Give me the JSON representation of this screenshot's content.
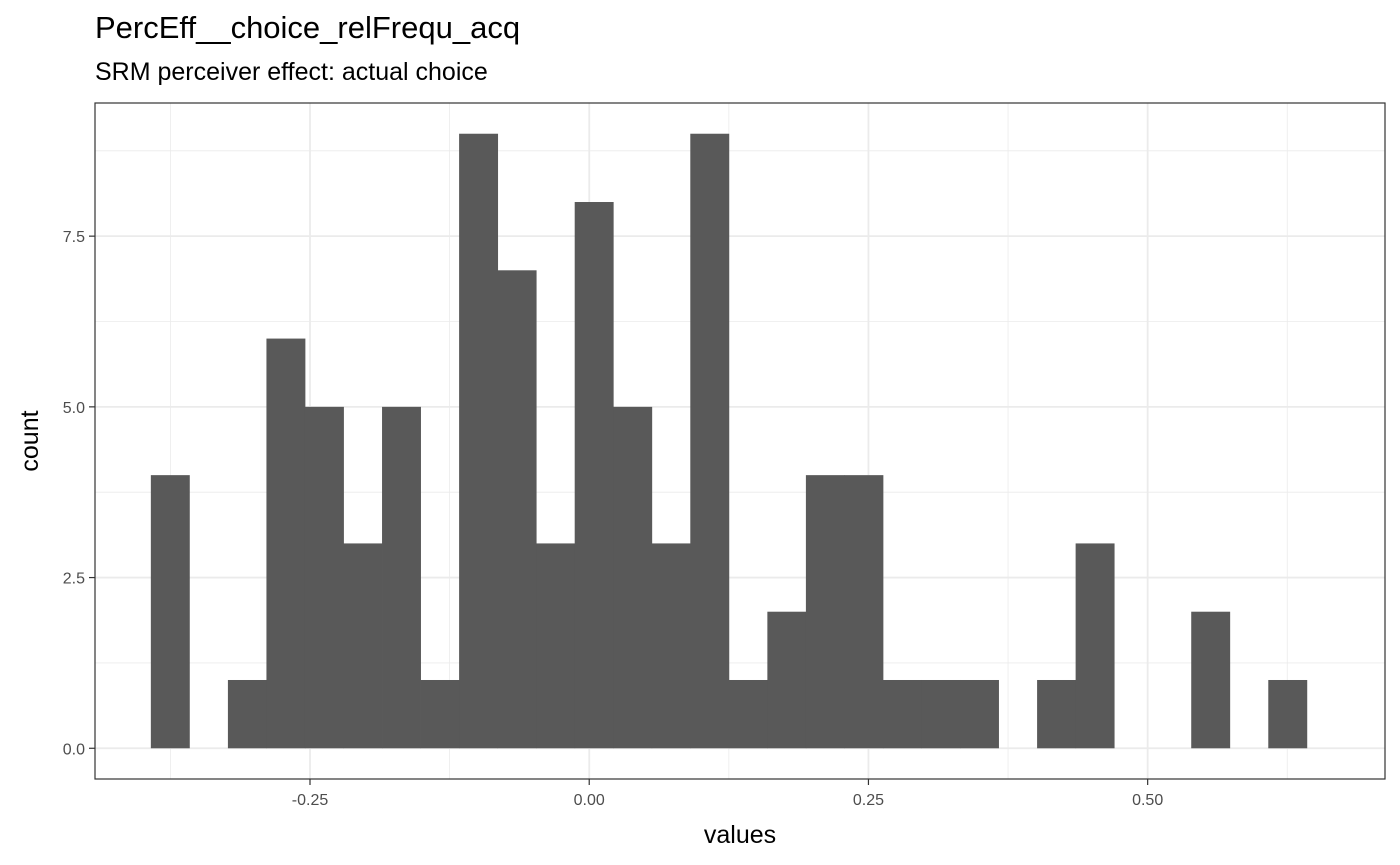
{
  "chart_data": {
    "type": "bar",
    "title": "PercEff__choice_relFrequ_acq",
    "subtitle": "SRM perceiver effect: actual choice",
    "xlabel": "values",
    "ylabel": "count",
    "xlim": [
      -0.4425,
      0.7125
    ],
    "ylim": [
      -0.45,
      9.45
    ],
    "x_ticks": [
      -0.25,
      0.0,
      0.25,
      0.5
    ],
    "x_tick_labels": [
      "-0.25",
      "0.00",
      "0.25",
      "0.50"
    ],
    "y_ticks": [
      0,
      2.5,
      5,
      7.5
    ],
    "y_tick_labels": [
      "0.0",
      "2.5",
      "5.0",
      "7.5"
    ],
    "bin_width": 0.0345,
    "bins": [
      {
        "x0": -0.3925,
        "count": 4
      },
      {
        "x0": -0.358,
        "count": 0
      },
      {
        "x0": -0.3235,
        "count": 1
      },
      {
        "x0": -0.289,
        "count": 6
      },
      {
        "x0": -0.2545,
        "count": 5
      },
      {
        "x0": -0.22,
        "count": 3
      },
      {
        "x0": -0.1855,
        "count": 5
      },
      {
        "x0": -0.151,
        "count": 1
      },
      {
        "x0": -0.1165,
        "count": 9
      },
      {
        "x0": -0.082,
        "count": 7
      },
      {
        "x0": -0.0475,
        "count": 3
      },
      {
        "x0": -0.013,
        "count": 8
      },
      {
        "x0": 0.0215,
        "count": 5
      },
      {
        "x0": 0.056,
        "count": 3
      },
      {
        "x0": 0.0905,
        "count": 9
      },
      {
        "x0": 0.125,
        "count": 1
      },
      {
        "x0": 0.1595,
        "count": 2
      },
      {
        "x0": 0.194,
        "count": 4
      },
      {
        "x0": 0.2285,
        "count": 4
      },
      {
        "x0": 0.263,
        "count": 1
      },
      {
        "x0": 0.2975,
        "count": 1
      },
      {
        "x0": 0.332,
        "count": 1
      },
      {
        "x0": 0.3665,
        "count": 0
      },
      {
        "x0": 0.401,
        "count": 1
      },
      {
        "x0": 0.4355,
        "count": 3
      },
      {
        "x0": 0.47,
        "count": 0
      },
      {
        "x0": 0.5045,
        "count": 0
      },
      {
        "x0": 0.539,
        "count": 2
      },
      {
        "x0": 0.5735,
        "count": 0
      },
      {
        "x0": 0.608,
        "count": 1
      }
    ],
    "bar_color": "#595959",
    "panel_border_color": "#333333",
    "grid": true,
    "grid_color": "#ebebeb",
    "background": "#ffffff"
  }
}
